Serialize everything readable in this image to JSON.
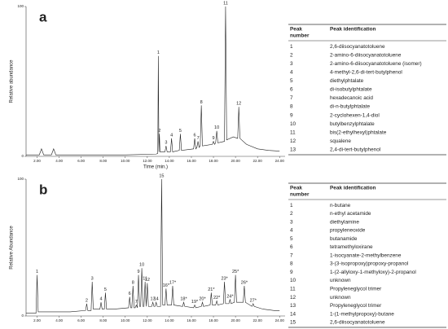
{
  "chart_data": [
    {
      "type": "line",
      "panel_label": "a",
      "xlabel": "Time (min.)",
      "ylabel": "Relative abundance",
      "color": "#222222",
      "xlim": [
        1,
        24.5
      ],
      "ylim": [
        0,
        100
      ],
      "xticks": [
        {
          "value": 2,
          "label": "2.00"
        },
        {
          "value": 4,
          "label": "4.00"
        },
        {
          "value": 6,
          "label": "6.00"
        },
        {
          "value": 8,
          "label": "8.00"
        },
        {
          "value": 10,
          "label": "10.00"
        },
        {
          "value": 12,
          "label": "12.00"
        },
        {
          "value": 14,
          "label": "14.00"
        },
        {
          "value": 16,
          "label": "16.00"
        },
        {
          "value": 18,
          "label": "18.00"
        },
        {
          "value": 20,
          "label": "20.00"
        },
        {
          "value": 22,
          "label": "22.00"
        },
        {
          "value": 24,
          "label": "24.00"
        }
      ],
      "yticks": [
        0,
        100
      ],
      "x": [
        1.0,
        2.2,
        2.4,
        2.6,
        3.3,
        3.5,
        3.7,
        6,
        10,
        12.8,
        12.95,
        13.0,
        13.05,
        13.1,
        13.15,
        13.6,
        13.7,
        13.8,
        14.1,
        14.2,
        14.3,
        14.9,
        15.0,
        15.1,
        16.2,
        16.3,
        16.4,
        16.5,
        16.6,
        16.7,
        16.8,
        16.9,
        17.0,
        17.9,
        18.0,
        18.1,
        18.2,
        18.3,
        18.4,
        19.0,
        19.1,
        19.2,
        19.8,
        20.2,
        20.3,
        20.4,
        21,
        22,
        23,
        24
      ],
      "values": [
        1,
        1,
        5,
        1,
        1,
        5,
        1,
        1,
        1,
        1.5,
        2,
        67,
        3,
        15,
        3,
        3,
        7,
        3,
        3,
        12,
        3,
        4,
        15,
        4,
        5,
        12,
        5,
        6,
        10,
        6,
        7,
        34,
        7,
        8,
        10,
        8,
        9,
        17,
        9,
        10,
        100,
        11,
        13,
        12,
        33,
        12,
        8,
        5,
        4,
        3.5
      ],
      "peaks": [
        {
          "label": "1",
          "x": 13.0,
          "y": 67
        },
        {
          "label": "2",
          "x": 13.1,
          "y": 15
        },
        {
          "label": "3",
          "x": 13.7,
          "y": 7
        },
        {
          "label": "4",
          "x": 14.2,
          "y": 12
        },
        {
          "label": "5",
          "x": 15.0,
          "y": 15
        },
        {
          "label": "6",
          "x": 16.3,
          "y": 12
        },
        {
          "label": "7",
          "x": 16.6,
          "y": 10
        },
        {
          "label": "8",
          "x": 16.9,
          "y": 34
        },
        {
          "label": "9",
          "x": 18.0,
          "y": 10
        },
        {
          "label": "10",
          "x": 18.3,
          "y": 17
        },
        {
          "label": "11",
          "x": 19.1,
          "y": 100
        },
        {
          "label": "12",
          "x": 20.3,
          "y": 33
        }
      ]
    },
    {
      "type": "line",
      "panel_label": "b",
      "ylabel": "Relative Abundance",
      "color": "#222222",
      "xlim": [
        1,
        24.5
      ],
      "ylim": [
        0,
        100
      ],
      "xticks": [
        {
          "value": 2,
          "label": "2.00"
        },
        {
          "value": 4,
          "label": "4.00"
        },
        {
          "value": 6,
          "label": "6.00"
        },
        {
          "value": 8,
          "label": "8.00"
        },
        {
          "value": 10,
          "label": "10.00"
        },
        {
          "value": 12,
          "label": "12.00"
        },
        {
          "value": 14,
          "label": "14.00"
        },
        {
          "value": 16,
          "label": "16.00"
        },
        {
          "value": 18,
          "label": "18.00"
        },
        {
          "value": 20,
          "label": "20.00"
        },
        {
          "value": 22,
          "label": "22.00"
        },
        {
          "value": 24,
          "label": "24.00"
        }
      ],
      "yticks": [
        0,
        100
      ],
      "x": [
        1.0,
        1.9,
        2.0,
        2.1,
        3,
        4,
        5,
        6.4,
        6.5,
        6.6,
        6.9,
        7.0,
        7.1,
        7.7,
        7.8,
        7.9,
        8.1,
        8.2,
        8.3,
        9,
        10.3,
        10.4,
        10.5,
        10.6,
        10.7,
        10.8,
        10.9,
        11.0,
        11.1,
        11.2,
        11.3,
        11.4,
        11.5,
        11.6,
        11.7,
        11.8,
        11.9,
        12.0,
        12.1,
        12.4,
        12.5,
        12.6,
        12.7,
        12.8,
        12.9,
        13.2,
        13.3,
        13.4,
        13.6,
        13.7,
        13.8,
        14.2,
        14.3,
        14.4,
        15.2,
        15.3,
        15.4,
        16.2,
        16.3,
        16.4,
        16.9,
        17.0,
        17.1,
        17.7,
        17.8,
        17.9,
        18.2,
        18.3,
        18.4,
        18.9,
        19.0,
        19.1,
        19.4,
        19.5,
        19.6,
        19.9,
        20.0,
        20.1,
        20.7,
        20.8,
        20.9,
        21.5,
        21.6,
        21.7,
        22.5,
        23.5,
        24
      ],
      "values": [
        2,
        2,
        30,
        3,
        3,
        3,
        3,
        4,
        9,
        4,
        4,
        25,
        5,
        5,
        10,
        5,
        5,
        17,
        5,
        5,
        6,
        14,
        6,
        6,
        22,
        6,
        6,
        8,
        6,
        30,
        7,
        7,
        35,
        7,
        7,
        25,
        7,
        24,
        7,
        7,
        10,
        7,
        7,
        10,
        7,
        7,
        100,
        8,
        8,
        20,
        8,
        8,
        22,
        8,
        7,
        10,
        7,
        6,
        8,
        6,
        7,
        10,
        7,
        8,
        17,
        8,
        8,
        11,
        8,
        9,
        25,
        9,
        9,
        12,
        9,
        10,
        30,
        10,
        10,
        22,
        10,
        7,
        9,
        7,
        5,
        4,
        4
      ],
      "peaks": [
        {
          "label": "1",
          "x": 2.0,
          "y": 30
        },
        {
          "label": "2",
          "x": 6.5,
          "y": 9
        },
        {
          "label": "3",
          "x": 7.0,
          "y": 25
        },
        {
          "label": "4",
          "x": 7.8,
          "y": 10
        },
        {
          "label": "5",
          "x": 8.2,
          "y": 17
        },
        {
          "label": "6",
          "x": 10.4,
          "y": 14
        },
        {
          "label": "7",
          "x": 11.0,
          "y": 8
        },
        {
          "label": "8",
          "x": 10.7,
          "y": 22
        },
        {
          "label": "9",
          "x": 11.2,
          "y": 30
        },
        {
          "label": "10",
          "x": 11.5,
          "y": 35
        },
        {
          "label": "11",
          "x": 11.8,
          "y": 25
        },
        {
          "label": "12",
          "x": 12.0,
          "y": 24
        },
        {
          "label": "13",
          "x": 12.5,
          "y": 10
        },
        {
          "label": "14",
          "x": 12.8,
          "y": 10
        },
        {
          "label": "15",
          "x": 13.3,
          "y": 100
        },
        {
          "label": "16*",
          "x": 13.7,
          "y": 20
        },
        {
          "label": "17*",
          "x": 14.3,
          "y": 22
        },
        {
          "label": "18*",
          "x": 15.3,
          "y": 10
        },
        {
          "label": "19*",
          "x": 16.3,
          "y": 8
        },
        {
          "label": "20*",
          "x": 17.0,
          "y": 10
        },
        {
          "label": "21*",
          "x": 17.8,
          "y": 17
        },
        {
          "label": "22*",
          "x": 18.3,
          "y": 11
        },
        {
          "label": "23*",
          "x": 19.0,
          "y": 25
        },
        {
          "label": "24*",
          "x": 19.5,
          "y": 12
        },
        {
          "label": "25*",
          "x": 20.0,
          "y": 30
        },
        {
          "label": "26*",
          "x": 20.8,
          "y": 22
        },
        {
          "label": "27*",
          "x": 21.6,
          "y": 9
        }
      ]
    }
  ],
  "tables": [
    {
      "header": [
        "Peak",
        "number",
        "Peak identification"
      ],
      "rows": [
        [
          "1",
          "2,6-diisocyanatotoluene"
        ],
        [
          "2",
          "2-amino-6-diisocyanatotoluene"
        ],
        [
          "3",
          "2-amino-6-diisocyanatotoluene (isomer)"
        ],
        [
          "4",
          "4-methyl-2,6-di-tert-butylphenol"
        ],
        [
          "5",
          "diethylphtalate"
        ],
        [
          "6",
          "di-isobutylphtalate"
        ],
        [
          "7",
          "hexadecanoic acid"
        ],
        [
          "8",
          "di-n-butylphtalate"
        ],
        [
          "9",
          "2-cyclohexen-1,4-diol"
        ],
        [
          "10",
          "butylbenzylphtalate"
        ],
        [
          "11",
          "bis(2-ethylhexyl)phtalate"
        ],
        [
          "12",
          "squalene"
        ],
        [
          "13",
          "2,4-di-tert-butylphenol"
        ]
      ]
    },
    {
      "header": [
        "Peak",
        "number",
        "Peak identification"
      ],
      "rows": [
        [
          "1",
          "n-butane"
        ],
        [
          "2",
          "n-ethyl acetamide"
        ],
        [
          "3",
          "diethylamine"
        ],
        [
          "4",
          "propyleneoxide"
        ],
        [
          "5",
          "butanamide"
        ],
        [
          "6",
          "tetramethyloxirane"
        ],
        [
          "7",
          "1-isocyanate-2-methylbenzene"
        ],
        [
          "8",
          "3-(3-isopropoxy)propoxy-propanol"
        ],
        [
          "9",
          "1-(2-allyloxy-1-methyloxy)-2-propanol"
        ],
        [
          "10",
          "unknown"
        ],
        [
          "11",
          "Propyleneglycol trimer"
        ],
        [
          "12",
          "unknown"
        ],
        [
          "13",
          "Propyleneglycol trimer"
        ],
        [
          "14",
          "1-(1-methylpropoxy)-butane"
        ],
        [
          "15",
          "2,6-diisocyanatotoluene"
        ]
      ]
    }
  ]
}
